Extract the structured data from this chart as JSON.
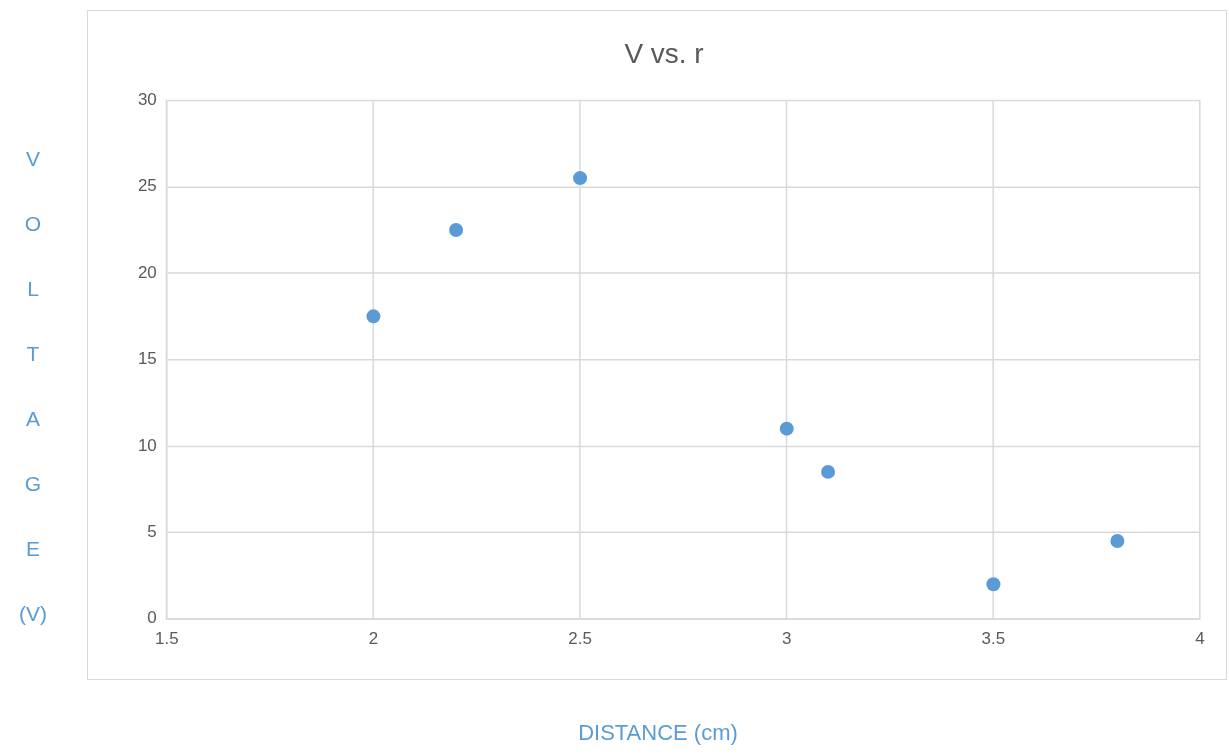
{
  "chart_data": {
    "type": "scatter",
    "title": "V vs. r",
    "xlabel": "DISTANCE (cm)",
    "ylabel": "VOLTAGE (V)",
    "x": [
      2,
      2.2,
      2.5,
      3,
      3.1,
      3.5,
      3.8
    ],
    "series": [
      {
        "color": "#5b9bd5",
        "values": [
          17.5,
          22.5,
          25.5,
          11,
          8.5,
          2,
          4.5
        ]
      }
    ],
    "xlim": [
      1.5,
      4
    ],
    "xticks": [
      1.5,
      2,
      2.5,
      3,
      3.5,
      4
    ],
    "ylim": [
      0,
      30
    ],
    "yticks": [
      0,
      5,
      10,
      15,
      20,
      25,
      30
    ],
    "grid": true,
    "legend": false,
    "marker": "circle"
  }
}
